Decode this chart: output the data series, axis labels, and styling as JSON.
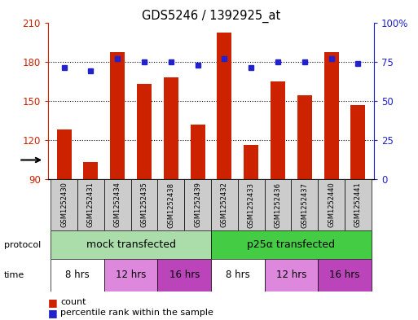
{
  "title": "GDS5246 / 1392925_at",
  "samples": [
    "GSM1252430",
    "GSM1252431",
    "GSM1252434",
    "GSM1252435",
    "GSM1252438",
    "GSM1252439",
    "GSM1252432",
    "GSM1252433",
    "GSM1252436",
    "GSM1252437",
    "GSM1252440",
    "GSM1252441"
  ],
  "counts": [
    128,
    103,
    187,
    163,
    168,
    132,
    202,
    116,
    165,
    154,
    187,
    147
  ],
  "percentiles": [
    71,
    69,
    77,
    75,
    75,
    73,
    77,
    71,
    75,
    75,
    77,
    74
  ],
  "ylim_left": [
    90,
    210
  ],
  "ylim_right": [
    0,
    100
  ],
  "yticks_left": [
    90,
    120,
    150,
    180,
    210
  ],
  "yticks_right": [
    0,
    25,
    50,
    75,
    100
  ],
  "ytick_right_labels": [
    "0",
    "25",
    "50",
    "75",
    "100%"
  ],
  "bar_color": "#cc2200",
  "dot_color": "#2222cc",
  "bar_width": 0.55,
  "protocol_labels": [
    "mock transfected",
    "p25α transfected"
  ],
  "protocol_color_light": "#aaddaa",
  "protocol_color_dark": "#44cc44",
  "time_labels": [
    "8 hrs",
    "12 hrs",
    "16 hrs",
    "8 hrs",
    "12 hrs",
    "16 hrs"
  ],
  "time_colors": [
    "#ffffff",
    "#dd88dd",
    "#bb44bb",
    "#ffffff",
    "#dd88dd",
    "#bb44bb"
  ],
  "sample_bg": "#cccccc",
  "legend_count_color": "#cc2200",
  "legend_dot_color": "#2222cc"
}
